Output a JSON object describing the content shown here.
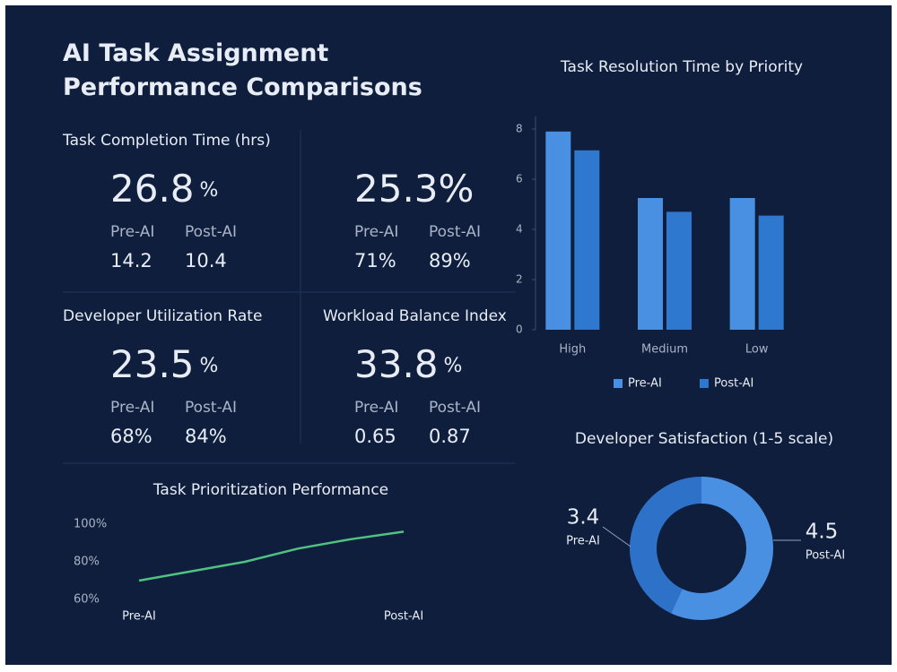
{
  "title": "AI Task Assignment Performance Comparisons",
  "kpis": [
    {
      "label": "Task Completion Time (hrs)",
      "value": "26.8",
      "unit": "%",
      "pre_label": "Pre-AI",
      "post_label": "Post-AI",
      "pre": "14.2",
      "post": "10.4"
    },
    {
      "value": "25.3%",
      "pre_label": "Pre-AI",
      "post_label": "Post-AI",
      "pre": "71%",
      "post": "89%"
    },
    {
      "label": "Developer Utilization Rate",
      "value": "23.5",
      "unit": "%",
      "pre_label": "Pre-AI",
      "post_label": "Post-AI",
      "pre": "68%",
      "post": "84%"
    },
    {
      "label": "Workload Balance Index",
      "value": "33.8",
      "unit": "%",
      "pre_label": "Pre-AI",
      "post_label": "Post-AI",
      "pre": "0.65",
      "post": "0.87"
    }
  ],
  "chart_data": [
    {
      "type": "bar",
      "title": "Task Resolution Time by Priority",
      "categories": [
        "High",
        "Medium",
        "Low"
      ],
      "series": [
        {
          "name": "Pre-AI",
          "color": "#4a90e2",
          "values": [
            7.9,
            5.25,
            5.25
          ]
        },
        {
          "name": "Post-AI",
          "color": "#2f78d0",
          "values": [
            7.15,
            4.7,
            4.55
          ]
        }
      ],
      "ylim": [
        0,
        8.5
      ],
      "yticks": [
        0,
        2,
        4,
        6,
        8
      ],
      "legend": "bottom"
    },
    {
      "type": "line",
      "title": "Task Prioritization Performance",
      "categories": [
        "Pre-AI",
        null,
        null,
        null,
        null,
        "Post-AI"
      ],
      "series": [
        {
          "color": "#4fc282",
          "values": [
            70,
            75,
            80,
            87,
            92,
            96
          ]
        }
      ],
      "ylim": [
        60,
        100
      ],
      "yticks": [
        {
          "value": 60,
          "label": "60%"
        },
        {
          "value": 80,
          "label": "80%"
        },
        {
          "value": 100,
          "label": "100%"
        }
      ]
    },
    {
      "type": "pie",
      "title": "Developer Satisfaction (1-5 scale)",
      "donut": true,
      "categories": [
        "Pre-AI",
        "Post-AI"
      ],
      "values": [
        3.4,
        4.5
      ],
      "colors": [
        "#2d72c8",
        "#4a90e2"
      ]
    }
  ]
}
